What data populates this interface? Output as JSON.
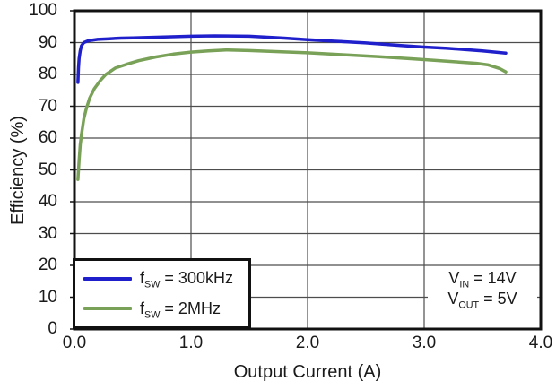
{
  "chart_data": {
    "type": "line",
    "title": "",
    "xlabel": "Output Current (A)",
    "ylabel": "Efficiency (%)",
    "xlim": [
      0,
      4
    ],
    "ylim": [
      0,
      100
    ],
    "grid": true,
    "grid_color": "#4d4d4d",
    "frame_color": "#111111",
    "legend_position": "bottom-left",
    "xticks": [
      {
        "label": "0.0",
        "value": 0
      },
      {
        "label": "1.0",
        "value": 1
      },
      {
        "label": "2.0",
        "value": 2
      },
      {
        "label": "3.0",
        "value": 3
      },
      {
        "label": "4.0",
        "value": 4
      }
    ],
    "yticks": [
      {
        "label": "0",
        "value": 0
      },
      {
        "label": "10",
        "value": 10
      },
      {
        "label": "20",
        "value": 20
      },
      {
        "label": "30",
        "value": 30
      },
      {
        "label": "40",
        "value": 40
      },
      {
        "label": "50",
        "value": 50
      },
      {
        "label": "60",
        "value": 60
      },
      {
        "label": "70",
        "value": 70
      },
      {
        "label": "80",
        "value": 80
      },
      {
        "label": "90",
        "value": 90
      },
      {
        "label": "100",
        "value": 100
      }
    ],
    "series": [
      {
        "name": "fSW = 300kHz",
        "color": "#1f1fcb",
        "points": [
          [
            0.03,
            77.5
          ],
          [
            0.035,
            82
          ],
          [
            0.04,
            85
          ],
          [
            0.05,
            87.5
          ],
          [
            0.06,
            89
          ],
          [
            0.08,
            90
          ],
          [
            0.12,
            90.6
          ],
          [
            0.2,
            91.0
          ],
          [
            0.3,
            91.2
          ],
          [
            0.4,
            91.4
          ],
          [
            0.5,
            91.5
          ],
          [
            0.7,
            91.7
          ],
          [
            0.9,
            91.9
          ],
          [
            1.0,
            92.0
          ],
          [
            1.2,
            92.1
          ],
          [
            1.5,
            92.0
          ],
          [
            1.8,
            91.4
          ],
          [
            2.0,
            90.9
          ],
          [
            2.2,
            90.5
          ],
          [
            2.5,
            89.9
          ],
          [
            2.8,
            89.1
          ],
          [
            3.0,
            88.6
          ],
          [
            3.2,
            88.2
          ],
          [
            3.5,
            87.4
          ],
          [
            3.7,
            86.7
          ]
        ]
      },
      {
        "name": "fSW = 2MHz",
        "color": "#79a157",
        "points": [
          [
            0.03,
            47
          ],
          [
            0.04,
            53
          ],
          [
            0.05,
            58
          ],
          [
            0.06,
            61
          ],
          [
            0.08,
            66
          ],
          [
            0.1,
            69
          ],
          [
            0.13,
            72.5
          ],
          [
            0.17,
            75.5
          ],
          [
            0.22,
            78
          ],
          [
            0.27,
            80
          ],
          [
            0.35,
            82
          ],
          [
            0.45,
            83.2
          ],
          [
            0.55,
            84.3
          ],
          [
            0.7,
            85.5
          ],
          [
            0.85,
            86.4
          ],
          [
            1.0,
            87.0
          ],
          [
            1.15,
            87.4
          ],
          [
            1.3,
            87.7
          ],
          [
            1.5,
            87.5
          ],
          [
            1.7,
            87.2
          ],
          [
            2.0,
            86.8
          ],
          [
            2.3,
            86.2
          ],
          [
            2.6,
            85.6
          ],
          [
            2.9,
            84.9
          ],
          [
            3.1,
            84.4
          ],
          [
            3.3,
            83.9
          ],
          [
            3.45,
            83.5
          ],
          [
            3.55,
            83.0
          ],
          [
            3.65,
            81.8
          ],
          [
            3.7,
            80.8
          ]
        ]
      }
    ]
  },
  "legend": {
    "items": [
      {
        "pre": "f",
        "sub": "SW",
        "post": " = 300kHz",
        "color": "#1f1fcb"
      },
      {
        "pre": "f",
        "sub": "SW",
        "post": " = 2MHz",
        "color": "#79a157"
      }
    ]
  },
  "annotation": {
    "lines": [
      {
        "pre": "V",
        "sub": "IN",
        "post": " = 14V"
      },
      {
        "pre": "V",
        "sub": "OUT",
        "post": " = 5V"
      }
    ]
  }
}
